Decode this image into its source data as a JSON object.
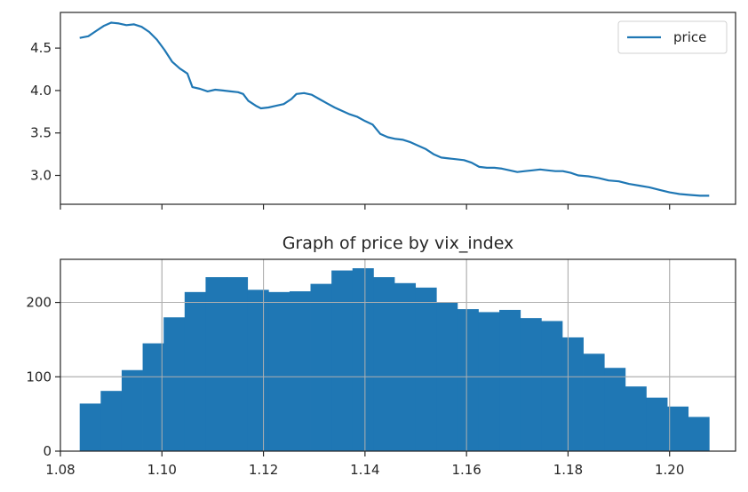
{
  "chart_data": [
    {
      "type": "line",
      "title": "",
      "xlabel": "",
      "ylabel": "",
      "xlim": [
        1.08,
        1.213
      ],
      "ylim": [
        2.66,
        4.92
      ],
      "yticks": [
        {
          "value": 3.0,
          "label": "3.0"
        },
        {
          "value": 3.5,
          "label": "3.5"
        },
        {
          "value": 4.0,
          "label": "4.0"
        },
        {
          "value": 4.5,
          "label": "4.5"
        }
      ],
      "xtick_labels_shown": false,
      "grid": false,
      "legend": {
        "placement": "top-right",
        "entries": [
          "price"
        ]
      },
      "series": [
        {
          "name": "price",
          "color": "#1f77b4",
          "points": [
            [
              1.0838,
              4.62
            ],
            [
              1.0855,
              4.64
            ],
            [
              1.087,
              4.7
            ],
            [
              1.0885,
              4.76
            ],
            [
              1.09,
              4.8
            ],
            [
              1.0915,
              4.79
            ],
            [
              1.093,
              4.77
            ],
            [
              1.0945,
              4.78
            ],
            [
              1.096,
              4.75
            ],
            [
              1.0975,
              4.69
            ],
            [
              1.099,
              4.6
            ],
            [
              1.1005,
              4.48
            ],
            [
              1.102,
              4.34
            ],
            [
              1.1035,
              4.26
            ],
            [
              1.105,
              4.2
            ],
            [
              1.106,
              4.04
            ],
            [
              1.1075,
              4.02
            ],
            [
              1.109,
              3.99
            ],
            [
              1.1105,
              4.01
            ],
            [
              1.112,
              4.0
            ],
            [
              1.1135,
              3.99
            ],
            [
              1.115,
              3.98
            ],
            [
              1.116,
              3.96
            ],
            [
              1.117,
              3.88
            ],
            [
              1.1185,
              3.82
            ],
            [
              1.1195,
              3.79
            ],
            [
              1.121,
              3.8
            ],
            [
              1.1225,
              3.82
            ],
            [
              1.124,
              3.84
            ],
            [
              1.1255,
              3.9
            ],
            [
              1.1265,
              3.96
            ],
            [
              1.128,
              3.97
            ],
            [
              1.1295,
              3.95
            ],
            [
              1.131,
              3.9
            ],
            [
              1.1325,
              3.85
            ],
            [
              1.134,
              3.8
            ],
            [
              1.1355,
              3.76
            ],
            [
              1.137,
              3.72
            ],
            [
              1.1385,
              3.69
            ],
            [
              1.14,
              3.64
            ],
            [
              1.1415,
              3.6
            ],
            [
              1.143,
              3.49
            ],
            [
              1.1445,
              3.45
            ],
            [
              1.146,
              3.43
            ],
            [
              1.1475,
              3.42
            ],
            [
              1.149,
              3.39
            ],
            [
              1.1505,
              3.35
            ],
            [
              1.152,
              3.31
            ],
            [
              1.1535,
              3.25
            ],
            [
              1.155,
              3.21
            ],
            [
              1.1565,
              3.2
            ],
            [
              1.158,
              3.19
            ],
            [
              1.1595,
              3.18
            ],
            [
              1.161,
              3.15
            ],
            [
              1.1625,
              3.1
            ],
            [
              1.164,
              3.09
            ],
            [
              1.1655,
              3.09
            ],
            [
              1.167,
              3.08
            ],
            [
              1.1685,
              3.06
            ],
            [
              1.17,
              3.04
            ],
            [
              1.1715,
              3.05
            ],
            [
              1.173,
              3.06
            ],
            [
              1.1745,
              3.07
            ],
            [
              1.176,
              3.06
            ],
            [
              1.1775,
              3.05
            ],
            [
              1.179,
              3.05
            ],
            [
              1.1805,
              3.03
            ],
            [
              1.182,
              3.0
            ],
            [
              1.184,
              2.99
            ],
            [
              1.186,
              2.97
            ],
            [
              1.188,
              2.94
            ],
            [
              1.19,
              2.93
            ],
            [
              1.192,
              2.9
            ],
            [
              1.194,
              2.88
            ],
            [
              1.196,
              2.86
            ],
            [
              1.198,
              2.83
            ],
            [
              1.2,
              2.8
            ],
            [
              1.202,
              2.78
            ],
            [
              1.204,
              2.77
            ],
            [
              1.206,
              2.76
            ],
            [
              1.2078,
              2.76
            ]
          ]
        }
      ]
    },
    {
      "type": "bar",
      "title": "Graph of price by vix_index",
      "xlabel": "",
      "ylabel": "",
      "xlim": [
        1.08,
        1.213
      ],
      "ylim": [
        0,
        258
      ],
      "xticks": [
        {
          "value": 1.08,
          "label": "1.08"
        },
        {
          "value": 1.1,
          "label": "1.10"
        },
        {
          "value": 1.12,
          "label": "1.12"
        },
        {
          "value": 1.14,
          "label": "1.14"
        },
        {
          "value": 1.16,
          "label": "1.16"
        },
        {
          "value": 1.18,
          "label": "1.18"
        },
        {
          "value": 1.2,
          "label": "1.20"
        }
      ],
      "yticks": [
        {
          "value": 0,
          "label": "0"
        },
        {
          "value": 100,
          "label": "100"
        },
        {
          "value": 200,
          "label": "200"
        }
      ],
      "grid": true,
      "bar_color": "#1f77b4",
      "bin_start": 1.0838,
      "bin_end": 1.2078,
      "values": [
        64,
        81,
        109,
        145,
        180,
        214,
        234,
        234,
        217,
        214,
        215,
        225,
        243,
        246,
        234,
        226,
        220,
        200,
        191,
        187,
        190,
        179,
        175,
        153,
        131,
        112,
        87,
        72,
        60,
        46
      ]
    }
  ]
}
